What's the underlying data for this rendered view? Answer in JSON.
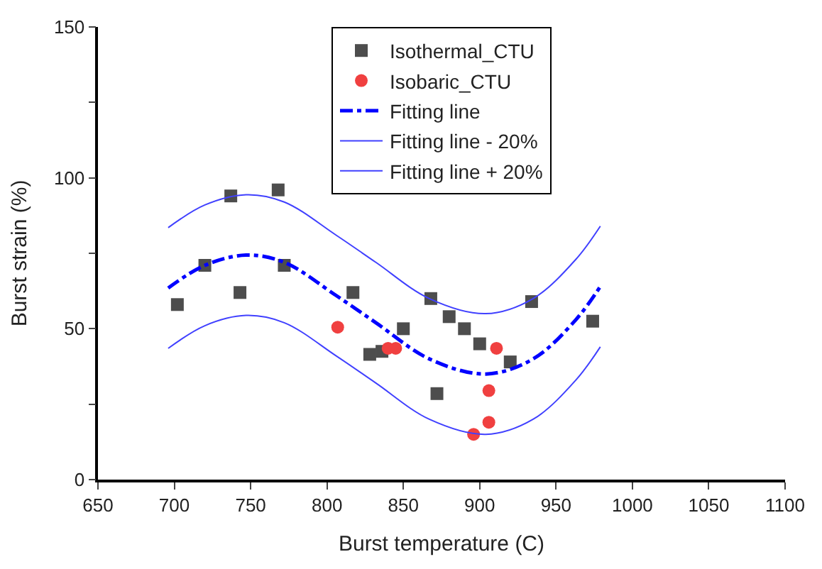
{
  "chart_data": {
    "type": "scatter",
    "xlabel": "Burst temperature (C)",
    "ylabel": "Burst strain (%)",
    "xlim": [
      650,
      1100
    ],
    "xticks": [
      650,
      700,
      750,
      800,
      850,
      900,
      950,
      1000,
      1050,
      1100
    ],
    "ylim": [
      0,
      150
    ],
    "yticks": [
      0,
      {
        "value": 25,
        "label": null
      },
      50,
      {
        "value": 75,
        "label": null
      },
      100,
      {
        "value": 125,
        "label": null
      },
      150
    ],
    "legend": "top",
    "series": [
      {
        "name": "Isothermal_CTU",
        "marker": "square",
        "color": "#4d4d4d",
        "x": [
          702,
          720,
          737,
          743,
          768,
          772,
          817,
          828,
          836,
          850,
          868,
          872,
          880,
          890,
          900,
          920,
          934,
          974
        ],
        "values": [
          58,
          71,
          94,
          62,
          96,
          71,
          62,
          41.5,
          42.5,
          50,
          60,
          28.5,
          54,
          50,
          45,
          39,
          59,
          52.5
        ]
      },
      {
        "name": "Isobaric_CTU",
        "marker": "circle",
        "color": "#f04040",
        "x": [
          807,
          840,
          845,
          896,
          906,
          906,
          911
        ],
        "values": [
          50.5,
          43.5,
          43.5,
          15,
          19,
          29.5,
          43.5
        ]
      },
      {
        "name": "Fitting line",
        "type": "line",
        "line_style": "dashdot",
        "color": "#0000ff",
        "x": [
          696,
          720,
          747,
          772,
          806,
          832,
          867,
          904,
          935,
          963,
          979
        ],
        "values": [
          63.5,
          71,
          74.4,
          72,
          61,
          52,
          40,
          35,
          40,
          53,
          64
        ]
      },
      {
        "name": "Fitting line - 20%",
        "type": "line",
        "line_style": "solid",
        "color": "#4040ff",
        "x": [
          696,
          720,
          747,
          772,
          806,
          832,
          867,
          904,
          935,
          963,
          979
        ],
        "values": [
          43.5,
          51,
          54.4,
          52,
          41,
          32,
          20,
          15,
          20,
          33,
          44
        ]
      },
      {
        "name": "Fitting line + 20%",
        "type": "line",
        "line_style": "solid",
        "color": "#4040ff",
        "x": [
          696,
          720,
          747,
          772,
          806,
          832,
          867,
          904,
          935,
          963,
          979
        ],
        "values": [
          83.5,
          91,
          94.4,
          92,
          81,
          72,
          60,
          55,
          60,
          73,
          84
        ]
      }
    ]
  }
}
